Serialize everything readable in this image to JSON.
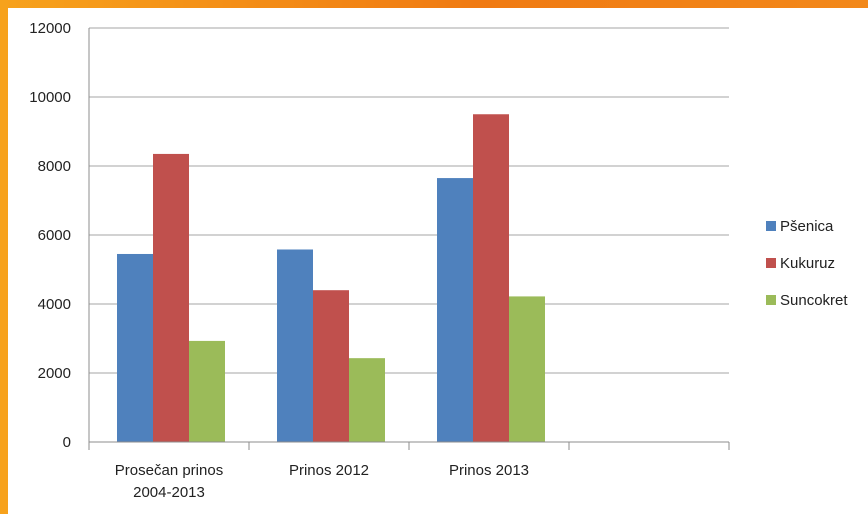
{
  "chart_data": {
    "type": "bar",
    "categories": [
      [
        "Prosečan prinos",
        "2004-2013"
      ],
      [
        "Prinos 2012"
      ],
      [
        "Prinos 2013"
      ],
      [
        ""
      ]
    ],
    "series": [
      {
        "name": "Pšenica",
        "color": "#4f81bd",
        "values": [
          5450,
          5580,
          7650,
          null
        ]
      },
      {
        "name": "Kukuruz",
        "color": "#c0504d",
        "values": [
          8350,
          4400,
          9500,
          null
        ]
      },
      {
        "name": "Suncokret",
        "color": "#9bbb59",
        "values": [
          2930,
          2430,
          4220,
          null
        ]
      }
    ],
    "yticks": [
      "0",
      "2000",
      "4000",
      "6000",
      "8000",
      "10000",
      "12000"
    ],
    "ylim": [
      0,
      12000
    ],
    "grid": true,
    "legend": "right",
    "title": "",
    "xlabel": "",
    "ylabel": ""
  }
}
